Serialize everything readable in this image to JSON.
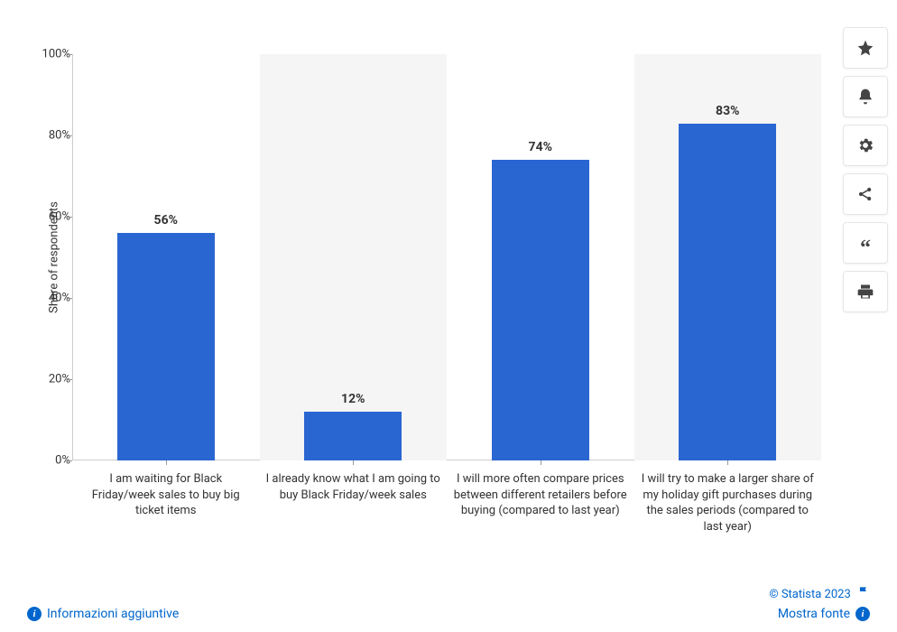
{
  "chart": {
    "type": "bar",
    "ylabel": "Share of respondents",
    "ylabel_fontsize": 13,
    "ylim": [
      0,
      100
    ],
    "ytick_step": 20,
    "yticks": [
      {
        "v": 0,
        "label": "0%"
      },
      {
        "v": 20,
        "label": "20%"
      },
      {
        "v": 40,
        "label": "40%"
      },
      {
        "v": 60,
        "label": "60%"
      },
      {
        "v": 80,
        "label": "80%"
      },
      {
        "v": 100,
        "label": "100%"
      }
    ],
    "categories": [
      "I am waiting for Black Friday/week sales to buy big ticket items",
      "I already know what I am going to buy Black Friday/week sales",
      "I will more often compare prices between different retailers before buying (compared to last year)",
      "I will try to make a larger share of my holiday gift purchases during the sales periods (compared to last year)"
    ],
    "values": [
      56,
      12,
      74,
      83
    ],
    "value_labels": [
      "56%",
      "12%",
      "74%",
      "83%"
    ],
    "bar_color": "#2a66d1",
    "alt_band_color": "#f5f5f5",
    "background_color": "#ffffff",
    "axis_color": "#cccccc",
    "text_color": "#333333",
    "label_fontsize": 13,
    "value_label_fontsize": 14,
    "bar_width_ratio": 0.52
  },
  "footer": {
    "copyright": "© Statista 2023",
    "info_link": "Informazioni aggiuntive",
    "source_link": "Mostra fonte"
  },
  "toolbar": {
    "favorite": "Favorite",
    "notify": "Notifications",
    "settings": "Settings",
    "share": "Share",
    "cite": "Cite",
    "print": "Print"
  }
}
